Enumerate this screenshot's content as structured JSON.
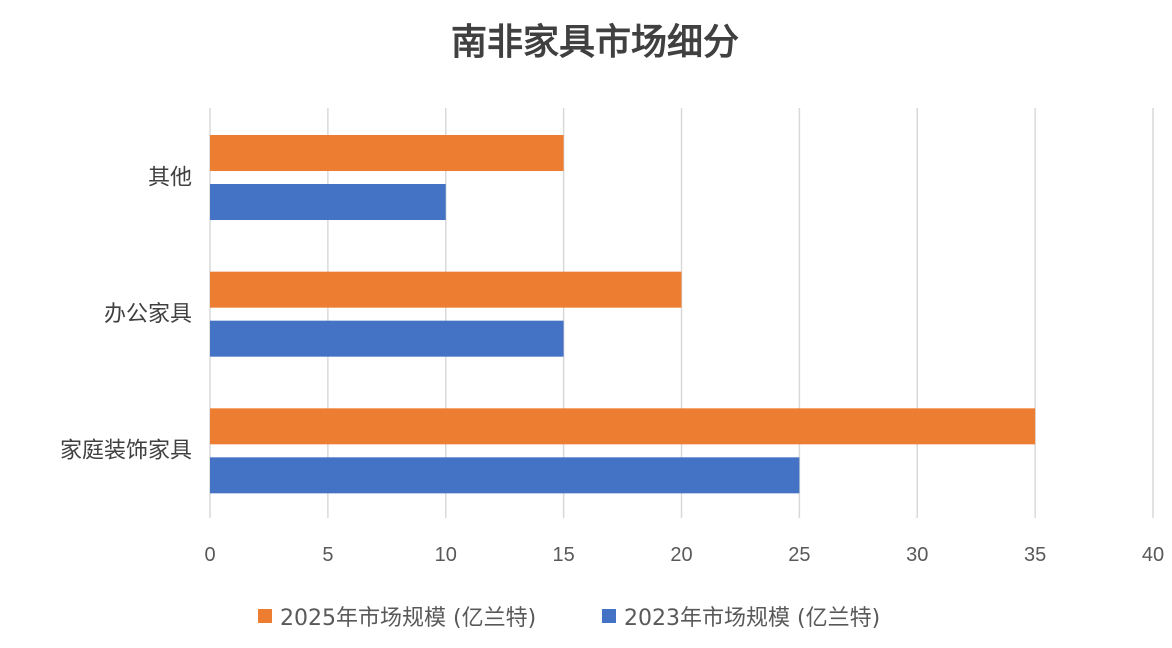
{
  "chart_data": {
    "type": "bar",
    "orientation": "horizontal",
    "title": "南非家具市场细分",
    "categories": [
      "其他",
      "办公家具",
      "家庭装饰家具"
    ],
    "series": [
      {
        "name": "2025年市场规模 (亿兰特)",
        "color": "#ED7D31",
        "values": [
          15,
          20,
          35
        ]
      },
      {
        "name": "2023年市场规模 (亿兰特)",
        "color": "#4472C4",
        "values": [
          10,
          15,
          25
        ]
      }
    ],
    "xlim": [
      0,
      40
    ],
    "xticks": [
      "0",
      "5",
      "10",
      "15",
      "20",
      "25",
      "30",
      "35",
      "40"
    ],
    "xlabel": "",
    "ylabel": "",
    "grid": true,
    "legend": "bottom"
  }
}
